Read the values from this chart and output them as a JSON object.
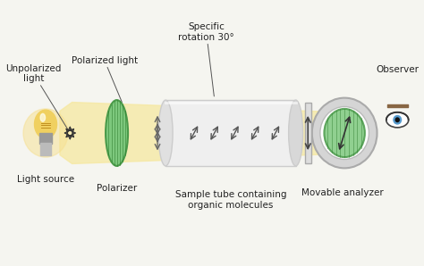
{
  "bg_color": "#f5f5f0",
  "title": "",
  "light_beam_color": "#f5e8a0",
  "light_beam_alpha": 0.7,
  "tube_color": "#e8e8e8",
  "tube_edge_color": "#cccccc",
  "polarizer_color": "#7dc87d",
  "polarizer_edge": "#4a9a4a",
  "analyzer_color": "#7dc87d",
  "analyzer_edge": "#4a9a4a",
  "arrow_color": "#555555",
  "text_color": "#222222",
  "label_fontsize": 7.5,
  "labels": {
    "unpolarized_light": "Unpolarized\nlight",
    "light_source": "Light source",
    "polarized_light": "Polarized light",
    "polarizer": "Polarizer",
    "specific_rotation": "Specific\nrotation 30°",
    "sample_tube": "Sample tube containing\norganic molecules",
    "movable_analyzer": "Movable analyzer",
    "observer": "Observer"
  }
}
